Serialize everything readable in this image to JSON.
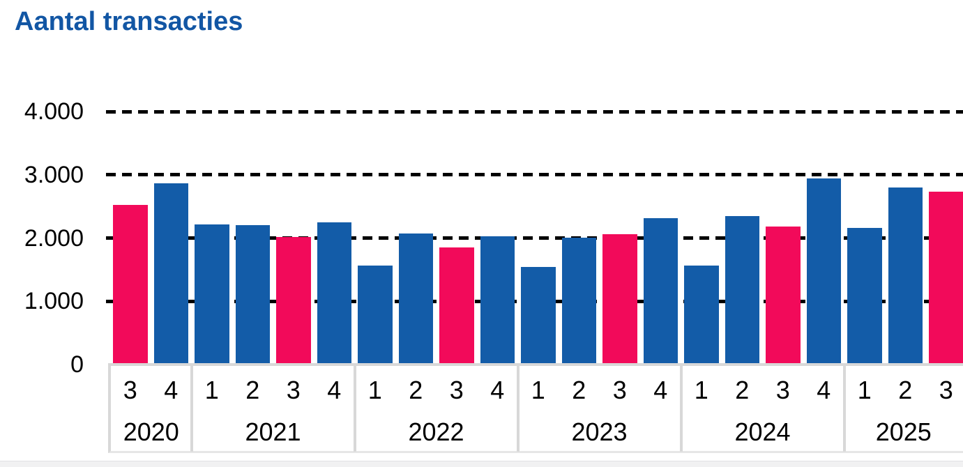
{
  "title": "Aantal transacties",
  "colors": {
    "title_blue": "#1256A4",
    "bar_blue": "#135CA8",
    "bar_highlight_pink": "#F20A5A",
    "gridline_black": "#000000",
    "band_border_gray": "#D8D8D8",
    "bottom_strip_gray": "#F1F1F2"
  },
  "chart_data": {
    "type": "bar",
    "title": "Aantal transacties",
    "categories": [
      "2020 Q3",
      "2020 Q4",
      "2021 Q1",
      "2021 Q2",
      "2021 Q3",
      "2021 Q4",
      "2022 Q1",
      "2022 Q2",
      "2022 Q3",
      "2022 Q4",
      "2023 Q1",
      "2023 Q2",
      "2023 Q3",
      "2023 Q4",
      "2024 Q1",
      "2024 Q2",
      "2024 Q3",
      "2024 Q4",
      "2025 Q1",
      "2025 Q2",
      "2025 Q3"
    ],
    "values": [
      2520,
      2860,
      2220,
      2200,
      2020,
      2250,
      1560,
      2070,
      1850,
      2030,
      1540,
      2010,
      2060,
      2310,
      1570,
      2350,
      2180,
      2940,
      2160,
      2800,
      2730
    ],
    "highlighted": [
      true,
      false,
      false,
      false,
      true,
      false,
      false,
      false,
      true,
      false,
      false,
      false,
      true,
      false,
      false,
      false,
      true,
      false,
      false,
      false,
      true
    ],
    "highlight_note": "third-quarter bars shown in pink, all others blue",
    "groups": [
      {
        "year": "2020",
        "quarters": [
          "3",
          "4"
        ]
      },
      {
        "year": "2021",
        "quarters": [
          "1",
          "2",
          "3",
          "4"
        ]
      },
      {
        "year": "2022",
        "quarters": [
          "1",
          "2",
          "3",
          "4"
        ]
      },
      {
        "year": "2023",
        "quarters": [
          "1",
          "2",
          "3",
          "4"
        ]
      },
      {
        "year": "2024",
        "quarters": [
          "1",
          "2",
          "3",
          "4"
        ]
      },
      {
        "year": "2025",
        "quarters": [
          "1",
          "2",
          "3"
        ]
      }
    ],
    "xlabel": "",
    "ylabel": "",
    "ylim": [
      0,
      4000
    ],
    "yticks": [
      0,
      1000,
      2000,
      3000,
      4000
    ],
    "ytick_labels": [
      "0",
      "1.000",
      "2.000",
      "3.000",
      "4.000"
    ],
    "grid": "horizontal dashed black lines at 1.000 steps",
    "legend": "none",
    "bar_color": "#135CA8",
    "highlight_color": "#F20A5A"
  }
}
